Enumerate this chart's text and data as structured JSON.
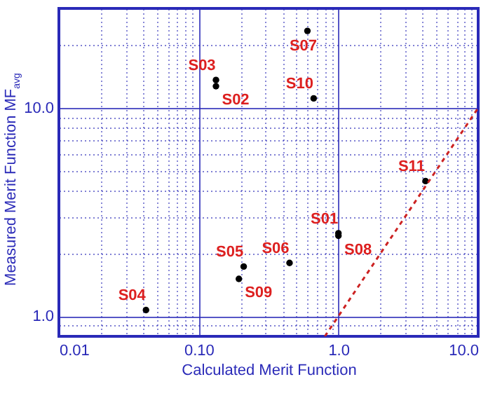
{
  "chart_data": {
    "type": "scatter",
    "xlabel": "Calculated Merit Function",
    "ylabel": "Measured Merit Function MF$_{avg}$",
    "log": "xy",
    "grid": true,
    "marker": "circle",
    "xlim": [
      0.01,
      10
    ],
    "ylim": [
      0.8,
      30
    ],
    "xticks": [
      {
        "value": 0.01,
        "label": "0.01"
      },
      {
        "value": 0.02,
        "label": null
      },
      {
        "value": 0.03,
        "label": null
      },
      {
        "value": 0.04,
        "label": null
      },
      {
        "value": 0.05,
        "label": null
      },
      {
        "value": 0.06,
        "label": null
      },
      {
        "value": 0.07,
        "label": null
      },
      {
        "value": 0.08,
        "label": null
      },
      {
        "value": 0.09,
        "label": null
      },
      {
        "value": 0.1,
        "label": "0.10"
      },
      {
        "value": 0.2,
        "label": null
      },
      {
        "value": 0.3,
        "label": null
      },
      {
        "value": 0.4,
        "label": null
      },
      {
        "value": 0.5,
        "label": null
      },
      {
        "value": 0.6,
        "label": null
      },
      {
        "value": 0.7,
        "label": null
      },
      {
        "value": 0.8,
        "label": null
      },
      {
        "value": 0.9,
        "label": null
      },
      {
        "value": 1,
        "label": "1.0"
      },
      {
        "value": 2,
        "label": null
      },
      {
        "value": 3,
        "label": null
      },
      {
        "value": 4,
        "label": null
      },
      {
        "value": 5,
        "label": null
      },
      {
        "value": 6,
        "label": null
      },
      {
        "value": 7,
        "label": null
      },
      {
        "value": 8,
        "label": null
      },
      {
        "value": 9,
        "label": null
      },
      {
        "value": 10,
        "label": "10.0"
      }
    ],
    "yticks": [
      {
        "value": 0.9,
        "label": null
      },
      {
        "value": 1,
        "label": "1.0"
      },
      {
        "value": 2,
        "label": null
      },
      {
        "value": 3,
        "label": null
      },
      {
        "value": 4,
        "label": null
      },
      {
        "value": 5,
        "label": null
      },
      {
        "value": 6,
        "label": null
      },
      {
        "value": 7,
        "label": null
      },
      {
        "value": 8,
        "label": null
      },
      {
        "value": 9,
        "label": null
      },
      {
        "value": 10,
        "label": "10.0"
      },
      {
        "value": 20,
        "label": null
      },
      {
        "value": 30,
        "label": null
      }
    ],
    "series": [
      {
        "color": "#000000",
        "x": [
          1.0,
          0.133,
          0.133,
          0.042,
          0.21,
          0.447,
          0.6,
          1.0,
          0.194,
          0.665,
          4.2
        ],
        "values": [
          2.5,
          12.7,
          13.6,
          1.07,
          1.73,
          1.8,
          23.4,
          2.43,
          1.51,
          11.1,
          4.45
        ]
      },
      {
        "type": "line",
        "color": "#cc2222",
        "line_style": "dashed",
        "marker": "none",
        "x": [
          0.8,
          10
        ],
        "values": [
          0.8,
          10
        ]
      }
    ],
    "annotations": [
      {
        "text": "S01",
        "x": 1.0,
        "y": 2.5
      },
      {
        "text": "S02",
        "x": 0.133,
        "y": 12.7
      },
      {
        "text": "S03",
        "x": 0.133,
        "y": 13.6
      },
      {
        "text": "S04",
        "x": 0.042,
        "y": 1.07
      },
      {
        "text": "S05",
        "x": 0.21,
        "y": 1.73
      },
      {
        "text": "S06",
        "x": 0.447,
        "y": 1.8
      },
      {
        "text": "S07",
        "x": 0.6,
        "y": 23.4
      },
      {
        "text": "S08",
        "x": 1.0,
        "y": 2.43
      },
      {
        "text": "S09",
        "x": 0.194,
        "y": 1.51
      },
      {
        "text": "S10",
        "x": 0.665,
        "y": 11.1
      },
      {
        "text": "S11",
        "x": 4.2,
        "y": 4.45
      }
    ]
  }
}
